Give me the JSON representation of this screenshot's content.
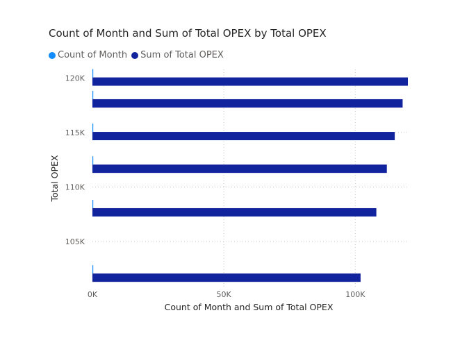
{
  "chart_data": {
    "type": "bar",
    "orientation": "horizontal",
    "title": "Count of Month and Sum of Total OPEX by Total OPEX",
    "xlabel": "Count of Month and Sum of Total OPEX",
    "ylabel": "Total OPEX",
    "xlim": [
      0,
      120000
    ],
    "ylim": [
      100800,
      120800
    ],
    "x_ticks": [
      0,
      50000,
      100000
    ],
    "x_tick_labels": [
      "0K",
      "50K",
      "100K"
    ],
    "y_ticks": [
      105000,
      110000,
      115000,
      120000
    ],
    "y_tick_labels": [
      "105K",
      "110K",
      "115K",
      "120K"
    ],
    "grid": true,
    "legend_position": "top-left",
    "categories": [
      120000,
      118000,
      115000,
      112000,
      108000,
      102000
    ],
    "series": [
      {
        "name": "Count of Month",
        "color": "#118DFF",
        "values": [
          1,
          1,
          1,
          1,
          1,
          1
        ]
      },
      {
        "name": "Sum of Total OPEX",
        "color": "#12239E",
        "values": [
          120000,
          118000,
          115000,
          112000,
          108000,
          102000
        ]
      }
    ]
  }
}
